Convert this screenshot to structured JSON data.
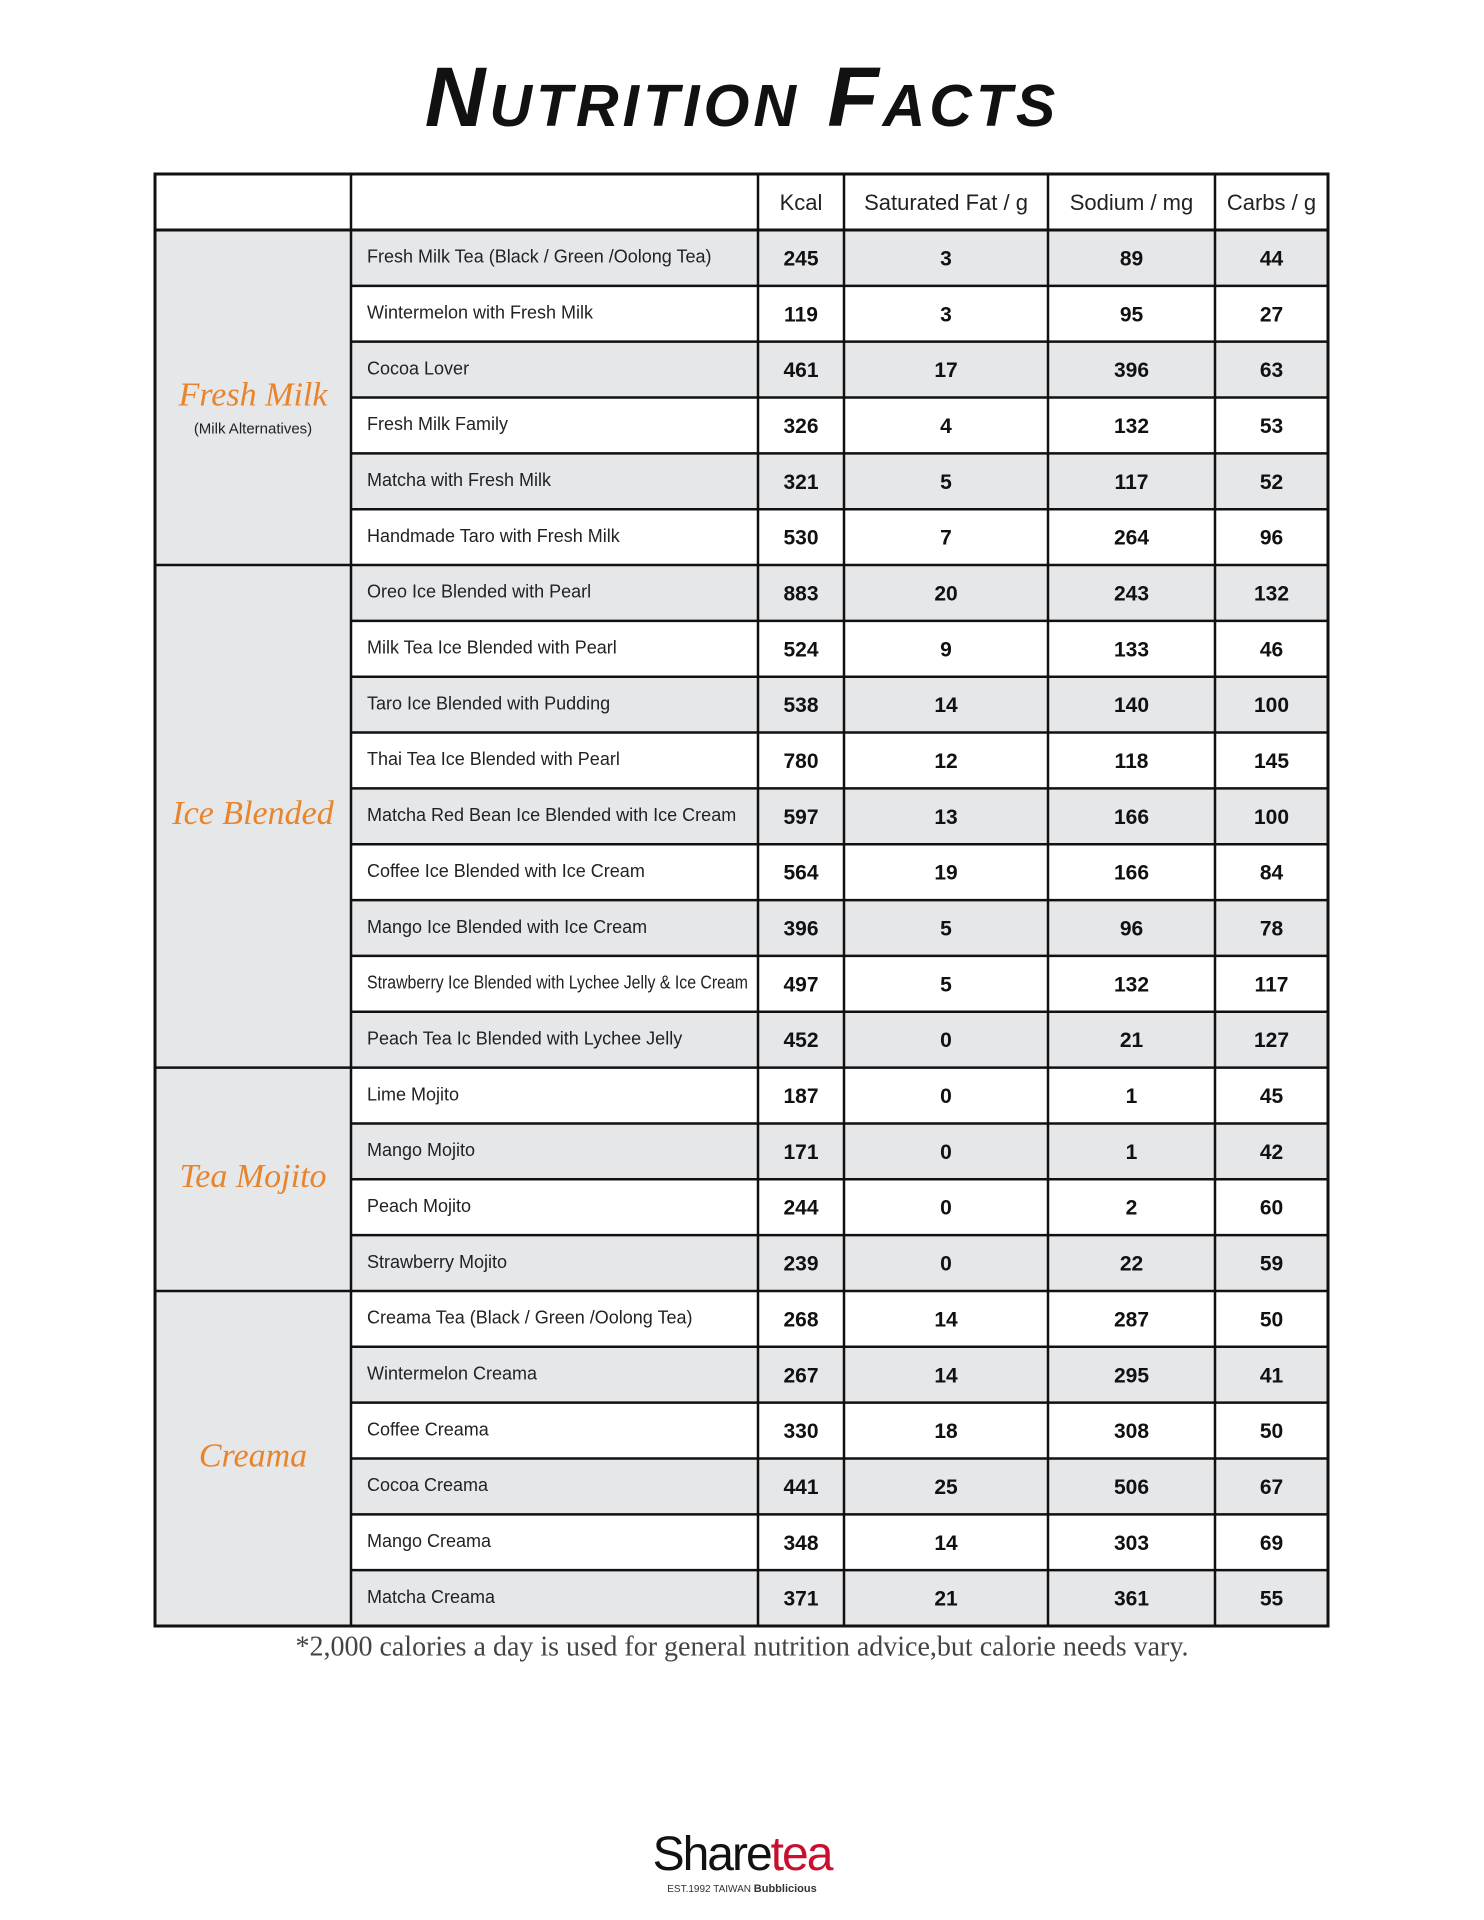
{
  "header": {
    "title": "Nutrition Facts"
  },
  "table": {
    "columns": [
      "Kcal",
      "Saturated Fat / g",
      "Sodium / mg",
      "Carbs / g"
    ],
    "groups": [
      {
        "name": "Fresh Milk",
        "note": "(Milk Alternatives)",
        "rows": [
          [
            "Fresh Milk Tea (Black / Green  /Oolong Tea)",
            245,
            3,
            89,
            44
          ],
          [
            "Wintermelon with Fresh Milk",
            119,
            3,
            95,
            27
          ],
          [
            "Cocoa Lover",
            461,
            17,
            396,
            63
          ],
          [
            "Fresh Milk Family",
            326,
            4,
            132,
            53
          ],
          [
            "Matcha with Fresh Milk",
            321,
            5,
            117,
            52
          ],
          [
            "Handmade Taro with Fresh Milk",
            530,
            7,
            264,
            96
          ]
        ]
      },
      {
        "name": "Ice Blended",
        "rows": [
          [
            "Oreo Ice Blended with Pearl",
            883,
            20,
            243,
            132
          ],
          [
            "Milk Tea Ice Blended with Pearl",
            524,
            9,
            133,
            46
          ],
          [
            "Taro Ice Blended with Pudding",
            538,
            14,
            140,
            100
          ],
          [
            "Thai Tea Ice Blended with Pearl",
            780,
            12,
            118,
            145
          ],
          [
            "Matcha Red Bean Ice Blended with Ice Cream",
            597,
            13,
            166,
            100
          ],
          [
            "Coffee Ice Blended with Ice Cream",
            564,
            19,
            166,
            84
          ],
          [
            "Mango Ice Blended with Ice Cream",
            396,
            5,
            96,
            78
          ],
          [
            "Strawberry Ice Blended with Lychee Jelly & Ice Cream",
            497,
            5,
            132,
            117
          ],
          [
            "Peach Tea Ic Blended with Lychee Jelly",
            452,
            0,
            21,
            127
          ]
        ]
      },
      {
        "name": "Tea Mojito",
        "rows": [
          [
            "Lime Mojito",
            187,
            0,
            1,
            45
          ],
          [
            "Mango Mojito",
            171,
            0,
            1,
            42
          ],
          [
            "Peach Mojito",
            244,
            0,
            2,
            60
          ],
          [
            "Strawberry Mojito",
            239,
            0,
            22,
            59
          ]
        ]
      },
      {
        "name": "Creama",
        "rows": [
          [
            "Creama Tea (Black / Green  /Oolong Tea)",
            268,
            14,
            287,
            50
          ],
          [
            "Wintermelon Creama",
            267,
            14,
            295,
            41
          ],
          [
            "Coffee Creama",
            330,
            18,
            308,
            50
          ],
          [
            "Cocoa Creama",
            441,
            25,
            506,
            67
          ],
          [
            "Mango Creama",
            348,
            14,
            303,
            69
          ],
          [
            "Matcha Creama",
            371,
            21,
            361,
            55
          ]
        ]
      }
    ]
  },
  "footnote": "*2,000 calories a day is used for general nutrition advice,but calorie needs vary.",
  "logo": {
    "brand_a": "Share",
    "brand_b": "tea",
    "tagline_a": "EST.1992 TAIWAN",
    "tagline_b": "Bubblicious"
  }
}
